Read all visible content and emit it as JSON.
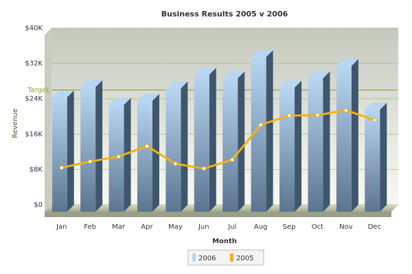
{
  "chart_data": {
    "type": "bar-line",
    "title": "Business Results 2005 v 2006",
    "x_label": "Month",
    "y_label": "Revenue",
    "categories": [
      "Jan",
      "Feb",
      "Mar",
      "Apr",
      "May",
      "Jun",
      "Jul",
      "Aug",
      "Sep",
      "Oct",
      "Nov",
      "Dec"
    ],
    "series": [
      {
        "name": "2006",
        "type": "bar",
        "color": "#b8d6f2",
        "values": [
          25900,
          28200,
          24200,
          25100,
          27900,
          31000,
          30200,
          35000,
          28100,
          30200,
          33000,
          23100
        ]
      },
      {
        "name": "2005",
        "type": "line",
        "color": "#f1b312",
        "values": [
          8400,
          9800,
          10900,
          13300,
          9300,
          8200,
          10200,
          18100,
          20200,
          20300,
          21400,
          19200
        ]
      }
    ],
    "ylim": [
      0,
      40000
    ],
    "yticks": [
      {
        "value": 0,
        "label": "$0"
      },
      {
        "value": 8000,
        "label": "$8K"
      },
      {
        "value": 16000,
        "label": "$16K"
      },
      {
        "value": 24000,
        "label": "$24K"
      },
      {
        "value": 32000,
        "label": "$32K"
      },
      {
        "value": 40000,
        "label": "$40K"
      }
    ],
    "trendline": {
      "value": 26000,
      "label": "Target",
      "color": "#8aa02a"
    },
    "grid": true
  }
}
